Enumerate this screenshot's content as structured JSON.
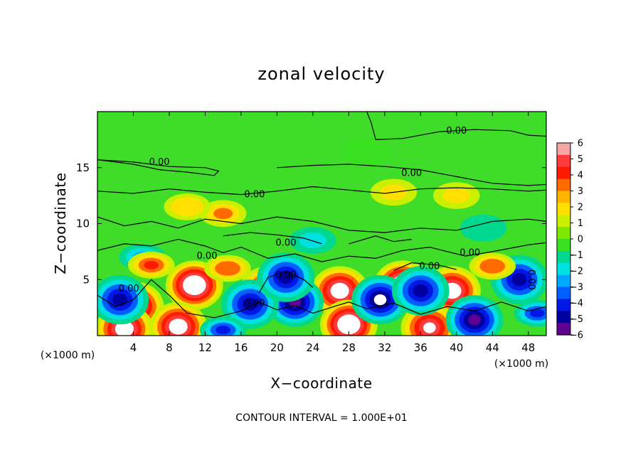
{
  "chart_data": {
    "type": "heatmap",
    "title": "zonal velocity",
    "xlabel": "X−coordinate",
    "ylabel": "Z−coordinate",
    "x_unit_label": "(×1000 m)",
    "z_unit_label": "(×1000 m)",
    "xlim": [
      0,
      50
    ],
    "ylim": [
      0,
      20
    ],
    "x_ticks": [
      4,
      8,
      12,
      16,
      20,
      24,
      28,
      32,
      36,
      40,
      44,
      48
    ],
    "y_ticks": [
      5,
      10,
      15
    ],
    "colorbar": {
      "ticks": [
        "6",
        "5",
        "4",
        "3",
        "2",
        "1",
        "0",
        "−1",
        "−2",
        "−3",
        "−4",
        "−5",
        "−6"
      ],
      "range": [
        -6,
        6
      ],
      "colors": [
        "#f7a6a6",
        "#ff3a3a",
        "#ff1a00",
        "#ff6a00",
        "#ffb400",
        "#ffe000",
        "#c8f000",
        "#7ee800",
        "#38e020",
        "#00d890",
        "#00e0e0",
        "#00a8ff",
        "#0060ff",
        "#0018e6",
        "#0000a0",
        "#600090"
      ]
    },
    "contour_level_label": "0.00",
    "contour_interval_text": "CONTOUR INTERVAL = 1.000E+01",
    "blobs": [
      {
        "x": 10.8,
        "z": 4.5,
        "v": 7.5
      },
      {
        "x": 4.2,
        "z": 2.6,
        "v": 7.0
      },
      {
        "x": 27.0,
        "z": 4.0,
        "v": 7.0
      },
      {
        "x": 34.0,
        "z": 4.5,
        "v": 7.2
      },
      {
        "x": 39.5,
        "z": 4.0,
        "v": 6.5
      },
      {
        "x": 28.0,
        "z": 1.0,
        "v": 7.5
      },
      {
        "x": 9.0,
        "z": 0.8,
        "v": 7.0
      },
      {
        "x": 3.0,
        "z": 0.6,
        "v": 6.5
      },
      {
        "x": 37.0,
        "z": 0.7,
        "v": 6.0
      },
      {
        "x": 19.0,
        "z": 4.0,
        "v": 6.0
      },
      {
        "x": 22.0,
        "z": 3.0,
        "v": -5.5
      },
      {
        "x": 17.0,
        "z": 2.8,
        "v": -5.0
      },
      {
        "x": 31.5,
        "z": 3.2,
        "v": -6.0
      },
      {
        "x": 42.0,
        "z": 1.4,
        "v": -5.5
      },
      {
        "x": 47.0,
        "z": 5.0,
        "v": -5.0
      },
      {
        "x": 21.0,
        "z": 5.2,
        "v": -5.0
      },
      {
        "x": 2.5,
        "z": 3.2,
        "v": -4.5
      },
      {
        "x": 36.0,
        "z": 4.0,
        "v": -4.5
      },
      {
        "x": 14.0,
        "z": 0.5,
        "v": -4.0
      },
      {
        "x": 49.0,
        "z": 2.0,
        "v": -4.0
      },
      {
        "x": 5.0,
        "z": 7.0,
        "v": -2.5
      },
      {
        "x": 14.0,
        "z": 10.9,
        "v": 3.0
      },
      {
        "x": 33.0,
        "z": 12.8,
        "v": 2.0
      },
      {
        "x": 40.0,
        "z": 12.5,
        "v": 1.8
      },
      {
        "x": 10.0,
        "z": 11.5,
        "v": 2.2
      },
      {
        "x": 24.0,
        "z": 8.5,
        "v": -1.6
      },
      {
        "x": 43.0,
        "z": 9.6,
        "v": -1.4
      },
      {
        "x": 6.0,
        "z": 6.3,
        "v": 4.0
      },
      {
        "x": 14.5,
        "z": 6.0,
        "v": 3.5
      },
      {
        "x": 44.0,
        "z": 6.2,
        "v": 3.5
      },
      {
        "x": 30.0,
        "z": 16.5,
        "v": -0.5
      }
    ],
    "contour_lines": [
      [
        [
          0,
          10.6
        ],
        [
          3,
          9.8
        ],
        [
          6,
          10.2
        ],
        [
          9,
          9.6
        ],
        [
          12,
          10.4
        ],
        [
          16,
          10.0
        ],
        [
          20,
          10.6
        ],
        [
          24,
          10.2
        ],
        [
          28,
          9.4
        ],
        [
          32,
          9.2
        ],
        [
          36,
          9.6
        ],
        [
          40,
          9.4
        ],
        [
          44,
          10.2
        ],
        [
          48,
          10.4
        ],
        [
          50,
          10.2
        ]
      ],
      [
        [
          0,
          12.9
        ],
        [
          4,
          12.7
        ],
        [
          8,
          13.1
        ],
        [
          12,
          12.8
        ],
        [
          16,
          12.6
        ],
        [
          20,
          12.9
        ],
        [
          24,
          13.3
        ],
        [
          28,
          13.0
        ],
        [
          32,
          12.7
        ],
        [
          36,
          13.1
        ],
        [
          40,
          13.2
        ],
        [
          44,
          13.1
        ],
        [
          48,
          12.9
        ],
        [
          50,
          13.0
        ]
      ],
      [
        [
          0,
          15.7
        ],
        [
          4,
          15.5
        ],
        [
          8,
          15.1
        ],
        [
          12,
          15.0
        ],
        [
          13.5,
          14.7
        ],
        [
          13,
          14.3
        ],
        [
          10,
          14.6
        ],
        [
          7,
          14.8
        ],
        [
          4,
          15.3
        ],
        [
          0,
          15.7
        ]
      ],
      [
        [
          20,
          15.0
        ],
        [
          24,
          15.2
        ],
        [
          28,
          15.3
        ],
        [
          32,
          15.1
        ],
        [
          36,
          14.8
        ],
        [
          40,
          14.2
        ],
        [
          44,
          13.6
        ],
        [
          48,
          13.4
        ],
        [
          50,
          13.5
        ]
      ],
      [
        [
          30,
          20
        ],
        [
          30.5,
          19.0
        ],
        [
          31,
          17.5
        ],
        [
          34,
          17.6
        ],
        [
          38,
          18.2
        ],
        [
          42,
          18.4
        ],
        [
          46,
          18.3
        ],
        [
          48,
          17.9
        ],
        [
          50,
          17.8
        ]
      ],
      [
        [
          0,
          7.6
        ],
        [
          3,
          8.2
        ],
        [
          6,
          8.0
        ],
        [
          9,
          8.6
        ],
        [
          12,
          8.0
        ],
        [
          14,
          7.4
        ],
        [
          16,
          7.9
        ],
        [
          19,
          6.9
        ],
        [
          22,
          7.3
        ],
        [
          25,
          6.6
        ],
        [
          28,
          7.1
        ],
        [
          31,
          6.9
        ],
        [
          34,
          7.6
        ],
        [
          37,
          7.9
        ],
        [
          41,
          7.1
        ],
        [
          44,
          7.5
        ],
        [
          48,
          8.1
        ],
        [
          50,
          8.3
        ]
      ],
      [
        [
          0,
          3.6
        ],
        [
          2,
          2.6
        ],
        [
          4,
          3.2
        ],
        [
          6,
          5.0
        ],
        [
          8,
          3.6
        ],
        [
          10,
          2.0
        ],
        [
          13,
          1.6
        ],
        [
          16,
          2.2
        ],
        [
          18,
          3.0
        ],
        [
          20,
          2.3
        ],
        [
          22,
          2.7
        ],
        [
          24,
          2.0
        ],
        [
          26,
          2.5
        ],
        [
          28,
          3.0
        ],
        [
          30,
          2.4
        ],
        [
          33,
          2.9
        ],
        [
          36,
          1.9
        ],
        [
          39,
          2.6
        ],
        [
          42,
          2.2
        ],
        [
          45,
          3.0
        ],
        [
          48,
          2.2
        ],
        [
          50,
          2.6
        ]
      ],
      [
        [
          18,
          3.8
        ],
        [
          19,
          5.2
        ],
        [
          21,
          5.7
        ],
        [
          23,
          5.0
        ],
        [
          24,
          4.3
        ]
      ],
      [
        [
          33,
          5.8
        ],
        [
          35,
          6.5
        ],
        [
          38,
          6.3
        ],
        [
          40,
          5.9
        ]
      ],
      [
        [
          14,
          8.9
        ],
        [
          17,
          9.2
        ],
        [
          20,
          9.0
        ],
        [
          23,
          8.7
        ],
        [
          25,
          8.2
        ]
      ],
      [
        [
          28,
          8.2
        ],
        [
          31,
          8.9
        ],
        [
          33,
          8.4
        ],
        [
          35,
          8.6
        ]
      ]
    ],
    "contour_labels": [
      {
        "x": 6.9,
        "z": 15.5
      },
      {
        "x": 17.5,
        "z": 12.6
      },
      {
        "x": 35.0,
        "z": 14.5
      },
      {
        "x": 40.0,
        "z": 18.3
      },
      {
        "x": 21.0,
        "z": 8.3
      },
      {
        "x": 12.2,
        "z": 7.1
      },
      {
        "x": 41.5,
        "z": 7.4
      },
      {
        "x": 37.0,
        "z": 6.2
      },
      {
        "x": 21.0,
        "z": 5.4
      },
      {
        "x": 3.5,
        "z": 4.2
      },
      {
        "x": 17.5,
        "z": 2.9
      }
    ],
    "rotated_contour_label": {
      "x": 48.0,
      "z": 5.0
    }
  }
}
